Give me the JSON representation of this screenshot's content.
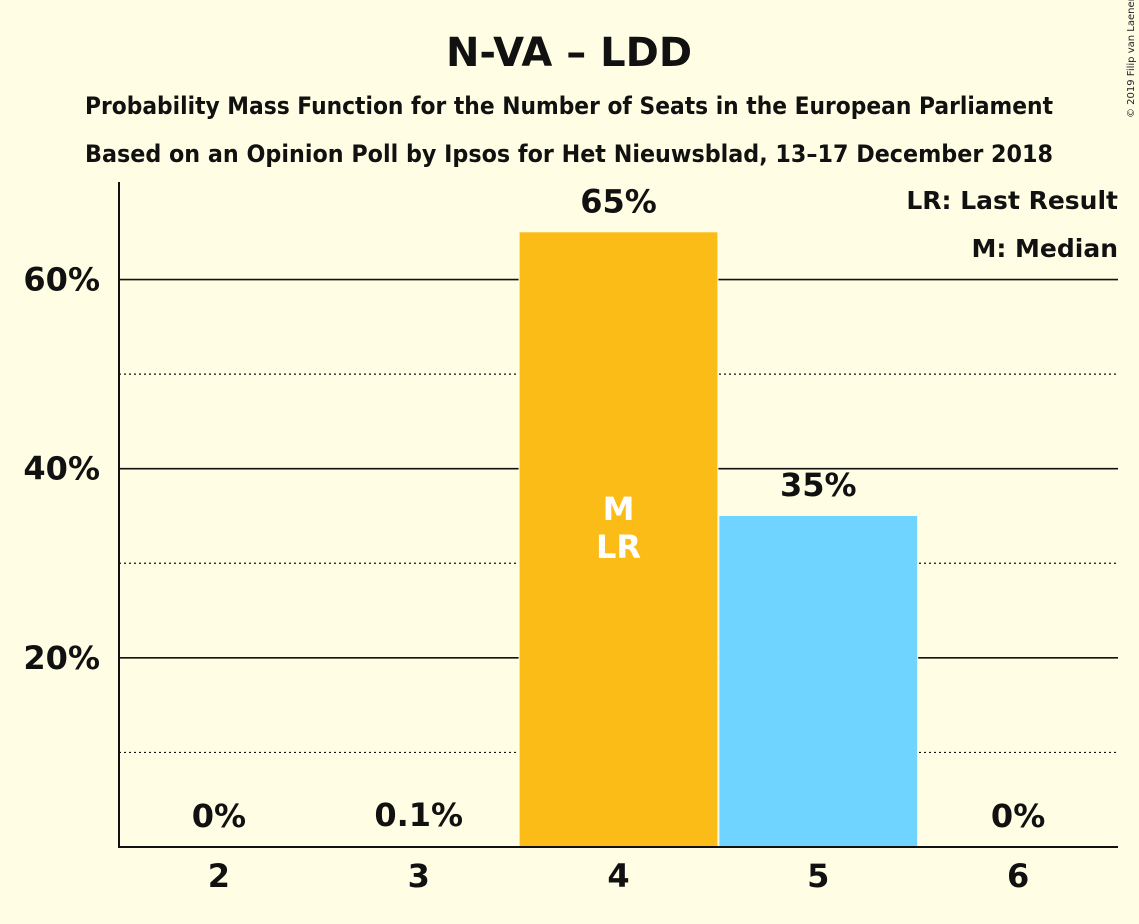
{
  "chart_data": {
    "type": "bar",
    "title": "N-VA – LDD",
    "subtitle_lines": [
      "Probability Mass Function for the Number of Seats in the European Parliament",
      "Based on an Opinion Poll by Ipsos for Het Nieuwsblad, 13–17 December 2018"
    ],
    "categories": [
      "2",
      "3",
      "4",
      "5",
      "6"
    ],
    "values": [
      0,
      0.1,
      65,
      35,
      0
    ],
    "value_labels": [
      "0%",
      "0.1%",
      "65%",
      "35%",
      "0%"
    ],
    "bar_colors": [
      "#FBBC17",
      "#FBBC17",
      "#FBBC17",
      "#6FD4FF",
      "#FBBC17"
    ],
    "ylim": [
      0,
      70
    ],
    "yticks": [
      20,
      40,
      60
    ],
    "ytick_labels": [
      "20%",
      "40%",
      "60%"
    ],
    "minor_gridlines": [
      10,
      30,
      50
    ],
    "grid": true,
    "legend_position": "top-right",
    "legend": [
      "LR: Last Result",
      "M: Median"
    ],
    "bar_annotations": [
      {
        "category": "4",
        "lines": [
          "M",
          "LR"
        ]
      }
    ],
    "copyright": "© 2019 Filip van Laenen",
    "colors": {
      "background": "#FFFEE4",
      "primary": "#FBBC17",
      "secondary": "#6FD4FF",
      "text": "#111111"
    }
  }
}
